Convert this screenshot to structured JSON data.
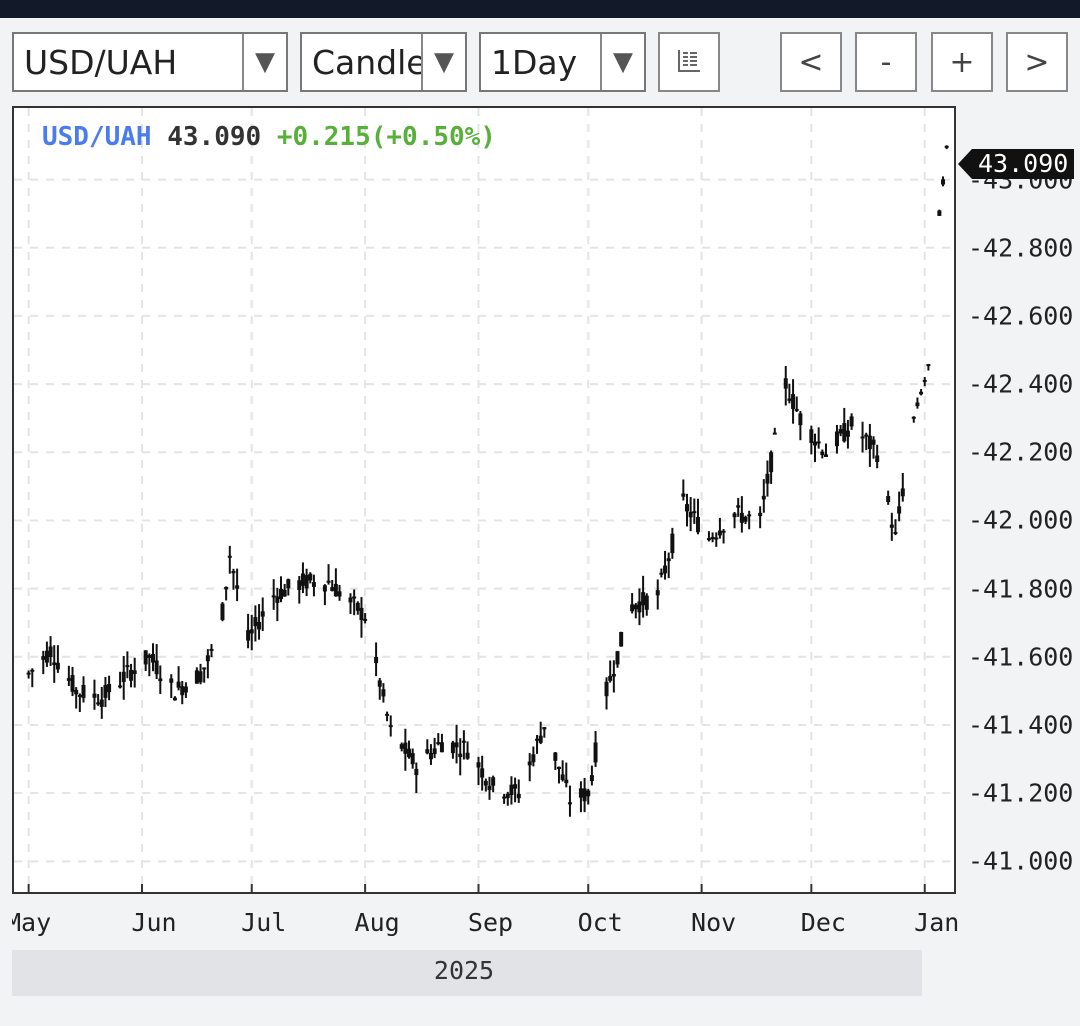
{
  "toolbar": {
    "symbol": "USD/UAH",
    "chart_type": "Candle",
    "interval": "1Day",
    "prev_label": "<",
    "zoom_out_label": "-",
    "zoom_in_label": "+",
    "next_label": ">"
  },
  "legend": {
    "symbol": "USD/UAH",
    "price": "43.090",
    "change": "+0.215(+0.50%)"
  },
  "colors": {
    "symbol": "#4a7cf0",
    "price": "#333333",
    "change": "#58b03a",
    "candle": "#111111",
    "grid": "#e4e4e4"
  },
  "chart_data": {
    "type": "line",
    "title": "",
    "xlabel": "",
    "ylabel": "",
    "ylim": [
      40.91,
      43.21
    ],
    "y_ticks": [
      "41.000",
      "41.200",
      "41.400",
      "41.600",
      "41.800",
      "42.000",
      "42.200",
      "42.400",
      "42.600",
      "42.800",
      "43.000"
    ],
    "last_value_label": "43.090",
    "x_ticks": [
      "May",
      "Jun",
      "Jul",
      "Aug",
      "Sep",
      "Oct",
      "Nov",
      "Dec",
      "Jan"
    ],
    "year_label": "2025",
    "grid": true,
    "series": [
      {
        "x": [
          "2025-05-01",
          "2025-05-07",
          "2025-05-14",
          "2025-05-21",
          "2025-05-28",
          "2025-06-03",
          "2025-06-10",
          "2025-06-17",
          "2025-06-22",
          "2025-06-25",
          "2025-06-30",
          "2025-07-07",
          "2025-07-15",
          "2025-07-22",
          "2025-08-01",
          "2025-08-08",
          "2025-08-15",
          "2025-08-22",
          "2025-08-29",
          "2025-09-05",
          "2025-09-12",
          "2025-09-19",
          "2025-09-26",
          "2025-10-01",
          "2025-10-06",
          "2025-10-13",
          "2025-10-20",
          "2025-10-27",
          "2025-11-03",
          "2025-11-10",
          "2025-11-17",
          "2025-11-24",
          "2025-11-28",
          "2025-12-05",
          "2025-12-12",
          "2025-12-19",
          "2025-12-24",
          "2025-12-29",
          "2026-01-02",
          "2026-01-05",
          "2026-01-07"
        ],
        "y": [
          41.55,
          41.62,
          41.5,
          41.48,
          41.55,
          41.6,
          41.5,
          41.55,
          41.65,
          41.9,
          41.65,
          41.78,
          41.82,
          41.82,
          41.72,
          41.38,
          41.28,
          41.35,
          41.33,
          41.22,
          41.2,
          41.4,
          41.18,
          41.2,
          41.5,
          41.75,
          41.78,
          42.05,
          41.95,
          42.02,
          42.0,
          42.4,
          42.3,
          42.2,
          42.28,
          42.2,
          41.95,
          42.3,
          42.45,
          42.9,
          43.09
        ]
      }
    ]
  }
}
